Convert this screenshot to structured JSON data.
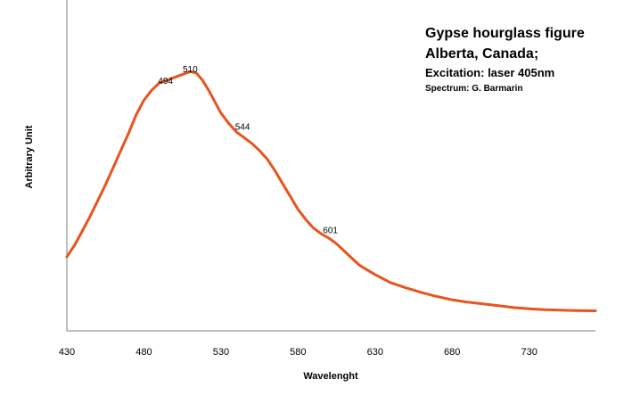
{
  "chart_data": {
    "type": "line",
    "title_lines": [
      "Gypse hourglass figure",
      "Alberta, Canada;",
      "Excitation: laser 405nm",
      "Spectrum: G. Barmarin"
    ],
    "xlabel": "Wavelenght",
    "ylabel": "Arbitrary Unit",
    "xlim": [
      430,
      773
    ],
    "ylim": [
      0,
      100
    ],
    "xticks": [
      430,
      480,
      530,
      580,
      630,
      680,
      730
    ],
    "grid": false,
    "legend": "none",
    "line_color": "#e8541f",
    "annotations": [
      {
        "x": 494,
        "y": 82.0,
        "label": "494"
      },
      {
        "x": 510,
        "y": 86.0,
        "label": "510"
      },
      {
        "x": 544,
        "y": 66.0,
        "label": "544"
      },
      {
        "x": 601,
        "y": 30.0,
        "label": "601"
      }
    ],
    "series": [
      {
        "x": [
          430,
          435,
          440,
          445,
          450,
          455,
          460,
          465,
          470,
          475,
          480,
          485,
          490,
          495,
          500,
          505,
          510,
          514,
          518,
          522,
          526,
          530,
          535,
          540,
          545,
          550,
          555,
          560,
          565,
          570,
          575,
          580,
          585,
          590,
          595,
          600,
          605,
          610,
          615,
          620,
          630,
          640,
          650,
          660,
          670,
          680,
          690,
          700,
          710,
          720,
          730,
          740,
          750,
          760,
          773
        ],
        "y": [
          23.0,
          27.0,
          32.0,
          37.0,
          42.5,
          48.0,
          54.0,
          60.0,
          66.0,
          72.5,
          77.5,
          81.0,
          83.5,
          84.5,
          85.5,
          86.5,
          87.5,
          87.0,
          84.5,
          81.0,
          77.0,
          73.0,
          69.5,
          66.5,
          64.5,
          62.5,
          60.0,
          57.0,
          53.0,
          48.5,
          44.0,
          39.5,
          36.0,
          33.0,
          31.0,
          29.5,
          27.5,
          25.0,
          22.5,
          20.0,
          16.8,
          14.0,
          12.2,
          10.6,
          9.2,
          8.0,
          7.2,
          6.6,
          6.0,
          5.3,
          4.9,
          4.6,
          4.4,
          4.3,
          4.2
        ]
      }
    ]
  }
}
